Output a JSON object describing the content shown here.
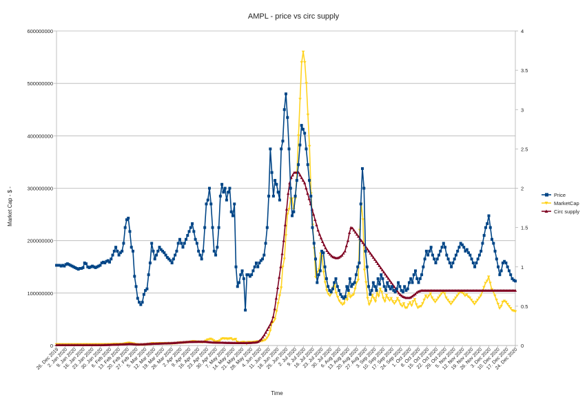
{
  "chart_data": {
    "type": "line",
    "title": "AMPL - price vs circ supply",
    "xlabel": "Time",
    "ylabel": "Market Cap - $ -",
    "ylim": [
      0,
      600000000
    ],
    "y2lim": [
      0,
      4
    ],
    "y_ticks": [
      "0",
      "100000000",
      "200000000",
      "300000000",
      "400000000",
      "500000000",
      "600000000"
    ],
    "y2_ticks": [
      "0",
      "0.5",
      "1",
      "1.5",
      "2",
      "2.5",
      "3",
      "3.5",
      "4"
    ],
    "grid": true,
    "legend": "right",
    "x_labels": [
      "26. Dec 2019",
      "2. Jan 2020",
      "9. Jan 2020",
      "16. Jan 2020",
      "23. Jan 2020",
      "30. Jan 2020",
      "6. Feb 2020",
      "13. Feb 2020",
      "20. Feb 2020",
      "27. Feb 2020",
      "5. Mar 2020",
      "12. Mar 2020",
      "19. Mar 2020",
      "26. Mar 2020",
      "2. Apr 2020",
      "9. Apr 2020",
      "16. Apr 2020",
      "23. Apr 2020",
      "30. Apr 2020",
      "7. May 2020",
      "14. May 2020",
      "21. May 2020",
      "28. May 2020",
      "4. Jun 2020",
      "11. Jun 2020",
      "18. Jun 2020",
      "25. Jun 2020",
      "2. Jul 2020",
      "9. Jul 2020",
      "16. Jul 2020",
      "23. Jul 2020",
      "30. Jul 2020",
      "6. Aug 2020",
      "13. Aug 2020",
      "20. Aug 2020",
      "27. Aug 2020",
      "3. Sep 2020",
      "10. Sep 2020",
      "17. Sep 2020",
      "24. Sep 2020",
      "1. Oct 2020",
      "8. Oct 2020",
      "15. Oct 2020",
      "22. Oct 2020",
      "29. Oct 2020",
      "5. Nov 2020",
      "12. Nov 2020",
      "19. Nov 2020",
      "26. Nov 2020",
      "3. Dec 2020",
      "10. Dec 2020",
      "17. Dec 2020",
      "24. Dec 2020"
    ],
    "series": [
      {
        "name": "Price",
        "axis": "right",
        "color": "#004586",
        "values": [
          1.02,
          1.02,
          1.02,
          1.01,
          1.02,
          1.01,
          1.03,
          1.04,
          1.03,
          1.02,
          1.01,
          1.0,
          0.99,
          0.98,
          0.97,
          0.98,
          0.98,
          0.99,
          1.05,
          1.04,
          1.0,
          0.99,
          1.0,
          1.01,
          1.0,
          0.99,
          1.0,
          1.01,
          1.02,
          1.05,
          1.06,
          1.05,
          1.07,
          1.08,
          1.06,
          1.1,
          1.15,
          1.2,
          1.25,
          1.2,
          1.15,
          1.18,
          1.2,
          1.3,
          1.5,
          1.6,
          1.62,
          1.45,
          1.25,
          1.2,
          0.88,
          0.75,
          0.6,
          0.55,
          0.52,
          0.55,
          0.65,
          0.7,
          0.72,
          0.9,
          1.05,
          1.3,
          1.2,
          1.1,
          1.15,
          1.2,
          1.25,
          1.22,
          1.2,
          1.18,
          1.15,
          1.12,
          1.1,
          1.08,
          1.05,
          1.1,
          1.15,
          1.2,
          1.3,
          1.35,
          1.3,
          1.25,
          1.3,
          1.35,
          1.4,
          1.45,
          1.5,
          1.55,
          1.45,
          1.35,
          1.3,
          1.2,
          1.15,
          1.1,
          1.2,
          1.5,
          1.8,
          1.85,
          2.0,
          1.8,
          1.5,
          1.2,
          1.15,
          1.25,
          1.5,
          1.9,
          2.05,
          1.95,
          2.0,
          1.85,
          1.95,
          2.0,
          1.7,
          1.65,
          1.8,
          1.0,
          0.75,
          0.8,
          0.9,
          0.95,
          0.85,
          0.45,
          0.9,
          0.9,
          0.88,
          0.9,
          0.95,
          1.0,
          1.05,
          1.0,
          1.05,
          1.08,
          1.1,
          1.15,
          1.3,
          1.5,
          1.9,
          2.5,
          2.2,
          1.9,
          2.1,
          2.05,
          1.95,
          1.85,
          2.5,
          2.6,
          3.0,
          3.2,
          2.9,
          2.5,
          2.0,
          1.65,
          1.7,
          1.9,
          2.1,
          2.3,
          2.55,
          2.8,
          2.75,
          2.7,
          2.5,
          2.3,
          2.1,
          1.9,
          1.5,
          1.3,
          1.1,
          0.8,
          0.9,
          0.95,
          1.2,
          1.18,
          1.0,
          0.85,
          0.75,
          0.7,
          0.68,
          0.72,
          0.8,
          0.85,
          0.75,
          0.7,
          0.65,
          0.62,
          0.6,
          0.62,
          0.75,
          0.7,
          0.85,
          0.75,
          0.78,
          0.8,
          0.9,
          1.0,
          1.05,
          1.8,
          2.25,
          2.0,
          1.2,
          1.0,
          0.75,
          0.65,
          0.7,
          0.8,
          0.75,
          0.7,
          0.85,
          0.78,
          0.9,
          0.85,
          0.75,
          0.7,
          0.8,
          0.75,
          0.72,
          0.75,
          0.7,
          0.68,
          0.72,
          0.8,
          0.75,
          0.7,
          0.68,
          0.75,
          0.7,
          0.72,
          0.8,
          0.85,
          0.8,
          0.9,
          0.95,
          0.85,
          0.8,
          0.85,
          0.9,
          1.0,
          1.1,
          1.2,
          1.15,
          1.2,
          1.25,
          1.15,
          1.1,
          1.05,
          1.1,
          1.15,
          1.2,
          1.25,
          1.3,
          1.25,
          1.15,
          1.1,
          1.05,
          1.0,
          1.05,
          1.1,
          1.15,
          1.2,
          1.25,
          1.3,
          1.28,
          1.25,
          1.2,
          1.22,
          1.18,
          1.15,
          1.1,
          1.05,
          1.0,
          1.05,
          1.1,
          1.15,
          1.2,
          1.3,
          1.4,
          1.5,
          1.55,
          1.65,
          1.5,
          1.35,
          1.3,
          1.2,
          1.1,
          1.0,
          0.9,
          0.95,
          1.05,
          1.07,
          1.05,
          1.0,
          0.95,
          0.9,
          0.85,
          0.83,
          0.82
        ]
      },
      {
        "name": "MarketCap",
        "axis": "left",
        "color": "#ffd320",
        "values": [
          2000000,
          2000000,
          2000000,
          2000000,
          2100000,
          2000000,
          2100000,
          2100000,
          2100000,
          2000000,
          2000000,
          2000000,
          2000000,
          2000000,
          2000000,
          2000000,
          2000000,
          2100000,
          2200000,
          2200000,
          2100000,
          2100000,
          2100000,
          2100000,
          2100000,
          2100000,
          2100000,
          2200000,
          2200000,
          2300000,
          2300000,
          2300000,
          2300000,
          2400000,
          2300000,
          2400000,
          2500000,
          2700000,
          2800000,
          2700000,
          2600000,
          2700000,
          2800000,
          3200000,
          4000000,
          4600000,
          5000000,
          4500000,
          3800000,
          3600000,
          2600000,
          2200000,
          1800000,
          1600000,
          1500000,
          1600000,
          1900000,
          2100000,
          2200000,
          2800000,
          3300000,
          4200000,
          3900000,
          3600000,
          3800000,
          4000000,
          4200000,
          4100000,
          4000000,
          4000000,
          3900000,
          3800000,
          3800000,
          3800000,
          3700000,
          4000000,
          4300000,
          4600000,
          5200000,
          5600000,
          5500000,
          5300000,
          5700000,
          6100000,
          6400000,
          6900000,
          7400000,
          7900000,
          7600000,
          7200000,
          7000000,
          6600000,
          6400000,
          6200000,
          7000000,
          9000000,
          11000000,
          11500000,
          12500000,
          11500000,
          9500000,
          7600000,
          7400000,
          8100000,
          9800000,
          12400000,
          13500000,
          12900000,
          13300000,
          12400000,
          13100000,
          13500000,
          11500000,
          11200000,
          12300000,
          6800000,
          5100000,
          5500000,
          6200000,
          6600000,
          5900000,
          3200000,
          6300000,
          6300000,
          6200000,
          6400000,
          6800000,
          7200000,
          7700000,
          7500000,
          8200000,
          8700000,
          9600000,
          11000000,
          14500000,
          19500000,
          28000000,
          42000000,
          45000000,
          50000000,
          65000000,
          80000000,
          95000000,
          110000000,
          150000000,
          165000000,
          210000000,
          250000000,
          260000000,
          280000000,
          280000000,
          260000000,
          280000000,
          330000000,
          400000000,
          470000000,
          540000000,
          560000000,
          540000000,
          500000000,
          440000000,
          380000000,
          290000000,
          230000000,
          185000000,
          130000000,
          140000000,
          145000000,
          175000000,
          170000000,
          140000000,
          120000000,
          105000000,
          98000000,
          95000000,
          100000000,
          110000000,
          116000000,
          100000000,
          92000000,
          85000000,
          81000000,
          78000000,
          80000000,
          94000000,
          87000000,
          105000000,
          92000000,
          95000000,
          97000000,
          108000000,
          120000000,
          125000000,
          220000000,
          270000000,
          240000000,
          144000000,
          120000000,
          90000000,
          78000000,
          84000000,
          96000000,
          90000000,
          84000000,
          102000000,
          94000000,
          108000000,
          102000000,
          90000000,
          84000000,
          96000000,
          90000000,
          86000000,
          90000000,
          84000000,
          80000000,
          84000000,
          90000000,
          85000000,
          78000000,
          75000000,
          80000000,
          72000000,
          72000000,
          78000000,
          82000000,
          76000000,
          84000000,
          88000000,
          78000000,
          72000000,
          74000000,
          75000000,
          80000000,
          87000000,
          95000000,
          91000000,
          95000000,
          99000000,
          91000000,
          87000000,
          83000000,
          87000000,
          91000000,
          95000000,
          99000000,
          103000000,
          99000000,
          91000000,
          87000000,
          83000000,
          79000000,
          83000000,
          87000000,
          91000000,
          95000000,
          99000000,
          103000000,
          101000000,
          99000000,
          95000000,
          97000000,
          93000000,
          91000000,
          87000000,
          83000000,
          79000000,
          83000000,
          87000000,
          91000000,
          95000000,
          103000000,
          111000000,
          119000000,
          123000000,
          131000000,
          119000000,
          107000000,
          103000000,
          95000000,
          87000000,
          79000000,
          71000000,
          75000000,
          83000000,
          85000000,
          83000000,
          79000000,
          75000000,
          71000000,
          67000000,
          66000000,
          65000000
        ]
      },
      {
        "name": "Circ supply",
        "axis": "left",
        "color": "#7e0021",
        "values": [
          1000000,
          1000000,
          1000000,
          1000000,
          1000000,
          1000000,
          1000000,
          1000000,
          1000000,
          1000000,
          1000000,
          1000000,
          1000000,
          1000000,
          1000000,
          1000000,
          1000000,
          1000000,
          1000000,
          1000000,
          1000000,
          1000000,
          1000000,
          1000000,
          1000000,
          1000000,
          1000000,
          1000000,
          1000000,
          1000000,
          1000000,
          1100000,
          1200000,
          1300000,
          1400000,
          1500000,
          1600000,
          1700000,
          1800000,
          1900000,
          2000000,
          2100000,
          2200000,
          2300000,
          2400000,
          2500000,
          2700000,
          2900000,
          3100000,
          3200000,
          3000000,
          2800000,
          2600000,
          2400000,
          2200000,
          2200000,
          2300000,
          2400000,
          2500000,
          2700000,
          2900000,
          3200000,
          3300000,
          3400000,
          3500000,
          3600000,
          3700000,
          3800000,
          3900000,
          4000000,
          4100000,
          4200000,
          4300000,
          4400000,
          4500000,
          4600000,
          4700000,
          4800000,
          5000000,
          5200000,
          5400000,
          5600000,
          5800000,
          6000000,
          6200000,
          6400000,
          6600000,
          6800000,
          7000000,
          7100000,
          7200000,
          7200000,
          7300000,
          7300000,
          7300000,
          7400000,
          7400000,
          7400000,
          7400000,
          7400000,
          7300000,
          7000000,
          6600000,
          6300000,
          6100000,
          6000000,
          5900000,
          5800000,
          5800000,
          5700000,
          5700000,
          5600000,
          5500000,
          5500000,
          5400000,
          5400000,
          5300000,
          5200000,
          5200000,
          5100000,
          5100000,
          5000000,
          5000000,
          5000000,
          5000000,
          5000000,
          5000000,
          5100000,
          5200000,
          5300000,
          5400000,
          5600000,
          5800000,
          6000000,
          6500000,
          7500000,
          9500000,
          12000000,
          16000000,
          20000000,
          25000000,
          30000000,
          35000000,
          40000000,
          46000000,
          55000000,
          70000000,
          90000000,
          110000000,
          130000000,
          150000000,
          175000000,
          200000000,
          230000000,
          260000000,
          290000000,
          310000000,
          320000000,
          325000000,
          330000000,
          330000000,
          330000000,
          330000000,
          325000000,
          320000000,
          315000000,
          310000000,
          300000000,
          290000000,
          280000000,
          270000000,
          260000000,
          250000000,
          240000000,
          230000000,
          220000000,
          212000000,
          205000000,
          198000000,
          192000000,
          186000000,
          181000000,
          177000000,
          174000000,
          171000000,
          169000000,
          168000000,
          167000000,
          167000000,
          168000000,
          170000000,
          172000000,
          176000000,
          180000000,
          190000000,
          200000000,
          215000000,
          225000000,
          224000000,
          220000000,
          216000000,
          212000000,
          208000000,
          204000000,
          200000000,
          196000000,
          192000000,
          188000000,
          184000000,
          180000000,
          176000000,
          172000000,
          168000000,
          164000000,
          160000000,
          156000000,
          152000000,
          148000000,
          144000000,
          140000000,
          136000000,
          132000000,
          128000000,
          124000000,
          120000000,
          116000000,
          112000000,
          108000000,
          104000000,
          100000000,
          97000000,
          95000000,
          93000000,
          92000000,
          91000000,
          91000000,
          91000000,
          92000000,
          94000000,
          96000000,
          98000000,
          101000000,
          103000000,
          104000000,
          105000000,
          105000000,
          105000000,
          105000000,
          105000000,
          105000000,
          105000000,
          105000000,
          105000000,
          105000000,
          105000000,
          105000000,
          105000000,
          105000000,
          105000000,
          105000000,
          105000000,
          105000000,
          105000000,
          105000000,
          105000000,
          105000000,
          105000000,
          105000000,
          105000000,
          105000000,
          105000000,
          105000000,
          105000000,
          105000000,
          105000000,
          105000000,
          105000000,
          105000000,
          105000000,
          105000000,
          105000000,
          105000000,
          105000000,
          105000000,
          105000000,
          105000000,
          105000000,
          105000000,
          105000000,
          105000000,
          105000000,
          105000000,
          105000000,
          105000000,
          105000000,
          105000000,
          105000000,
          105000000,
          105000000,
          105000000,
          105000000,
          105000000,
          105000000,
          105000000,
          105000000,
          105000000,
          105000000,
          105000000
        ]
      }
    ]
  }
}
